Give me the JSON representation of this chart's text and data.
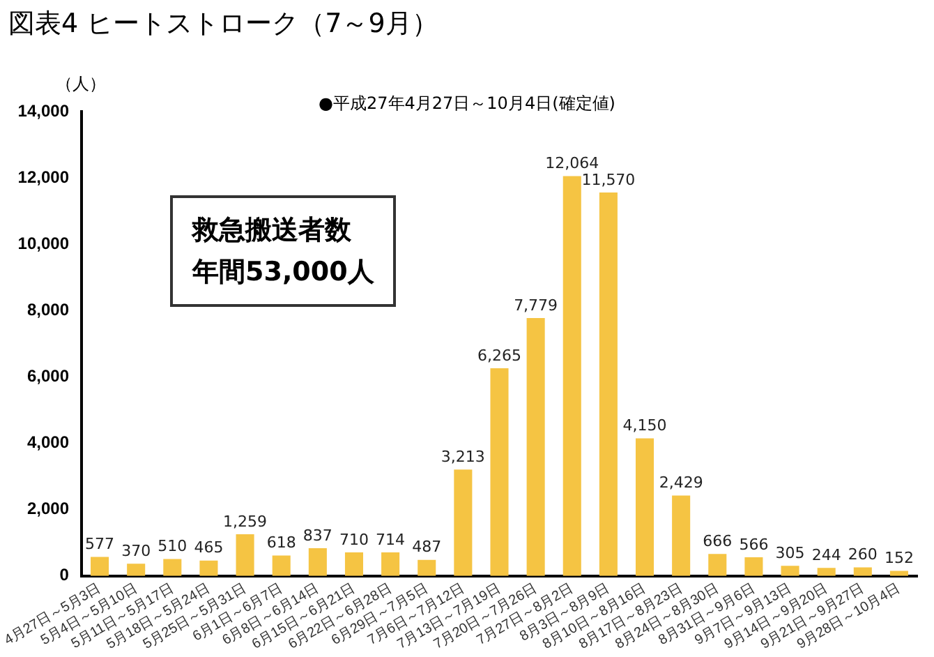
{
  "chart_data": {
    "type": "bar",
    "title": "図表4 ヒートストローク（7～9月）",
    "subtitle": "●平成27年4月27日～10月4日(確定値)",
    "ylabel": "（人）",
    "annotations": [
      "救急搬送者数",
      "年間53,000人"
    ],
    "categories": [
      "4月27日～5月3日",
      "5月4日～5月10日",
      "5月11日～5月17日",
      "5月18日～5月24日",
      "5月25日～5月31日",
      "6月1日～6月7日",
      "6月8日～6月14日",
      "6月15日～6月21日",
      "6月22日～6月28日",
      "6月29日～7月5日",
      "7月6日～7月12日",
      "7月13日～7月19日",
      "7月20日～7月26日",
      "7月27日～8月2日",
      "8月3日～8月9日",
      "8月10日～8月16日",
      "8月17日～8月23日",
      "8月24日～8月30日",
      "8月31日～9月6日",
      "9月7日～9月13日",
      "9月14日～9月20日",
      "9月21日～9月27日",
      "9月28日～10月4日"
    ],
    "values": [
      577,
      370,
      510,
      465,
      1259,
      618,
      837,
      710,
      714,
      487,
      3213,
      6265,
      7779,
      12064,
      11570,
      4150,
      2429,
      666,
      566,
      305,
      244,
      260,
      152
    ],
    "value_labels": [
      "577",
      "370",
      "510",
      "465",
      "1,259",
      "618",
      "837",
      "710",
      "714",
      "487",
      "3,213",
      "6,265",
      "7,779",
      "12,064",
      "11,570",
      "4,150",
      "2,429",
      "666",
      "566",
      "305",
      "244",
      "260",
      "152"
    ],
    "color": "#f5c443",
    "grid": false,
    "legend": false,
    "ylim": [
      0,
      14000
    ],
    "yticks": [
      0,
      {
        "value": 2000,
        "label": "2,000"
      },
      {
        "value": 4000,
        "label": "4,000"
      },
      {
        "value": 6000,
        "label": "6,000"
      },
      {
        "value": 8000,
        "label": "8,000"
      },
      {
        "value": 10000,
        "label": "10,000"
      },
      {
        "value": 12000,
        "label": "12,000"
      },
      {
        "value": 14000,
        "label": "14,000"
      }
    ]
  }
}
